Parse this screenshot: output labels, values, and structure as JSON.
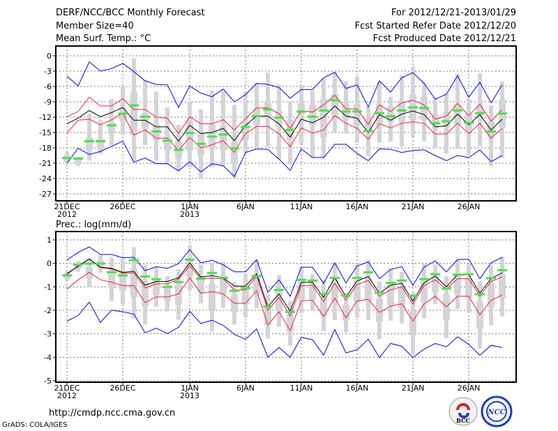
{
  "header": {
    "title": "DERF/NCC/BCC Monthly Forecast",
    "member_size": "Member Size=40",
    "variable": "Mean Surf. Temp.: °C",
    "period": "For 2012/12/21-2013/01/29",
    "start_date": "Fcst Started Refer Date 2012/12/20",
    "produced_date": "Fcst Produced Date 2012/12/21"
  },
  "footer": {
    "url": "http://cmdp.ncc.cma.gov.cn",
    "credit": "GrADS: COLA/IGES",
    "logos": [
      "BCC",
      "NCC"
    ]
  },
  "colors": {
    "whisker": "#d4d4d8",
    "obs": "#44e644",
    "mean": "#000000",
    "spread": "#ff1a3c",
    "extreme": "#0000ff"
  },
  "chart_data": [
    {
      "type": "line",
      "title": "Mean Surf. Temp.: °C",
      "ylabel": "°C",
      "ylim": [
        -27,
        0
      ],
      "yticks": [
        "0",
        "-3",
        "-6",
        "-9",
        "-12",
        "-15",
        "-18",
        "-21",
        "-24",
        "-27"
      ],
      "ytick_values": [
        0,
        -3,
        -6,
        -9,
        -12,
        -15,
        -18,
        -21,
        -24,
        -27
      ],
      "xticks": [
        {
          "day": 0,
          "label": "21DEC",
          "sub": "2012"
        },
        {
          "day": 5,
          "label": "26DEC"
        },
        {
          "day": 11,
          "label": "1JAN",
          "sub": "2013"
        },
        {
          "day": 16,
          "label": "6JAN"
        },
        {
          "day": 21,
          "label": "11JAN"
        },
        {
          "day": 26,
          "label": "16JAN"
        },
        {
          "day": 31,
          "label": "21JAN"
        },
        {
          "day": 36,
          "label": "26JAN"
        }
      ],
      "grid": true,
      "series": [
        {
          "name": "max",
          "color_key": "extreme",
          "values": [
            -4.0,
            -5.9,
            -1.2,
            -3.0,
            -2.5,
            -1.5,
            -3.1,
            -4.9,
            -5.6,
            -5.7,
            -10.1,
            -5.9,
            -7.3,
            -8.0,
            -6.5,
            -9.0,
            -7.6,
            -5.4,
            -5.6,
            -6.2,
            -8.3,
            -6.6,
            -6.6,
            -4.3,
            -3.2,
            -6.4,
            -5.7,
            -10.0,
            -4.9,
            -7.1,
            -4.3,
            -3.3,
            -5.4,
            -8.5,
            -7.5,
            -3.9,
            -8.1,
            -5.2,
            -9.2,
            -5.7
          ]
        },
        {
          "name": "mean+std",
          "color_key": "spread",
          "values": [
            -11.9,
            -10.9,
            -8.1,
            -9.8,
            -9.8,
            -8.4,
            -10.5,
            -10.5,
            -12.0,
            -12.2,
            -15.2,
            -11.9,
            -13.3,
            -13.3,
            -12.5,
            -14.5,
            -12.3,
            -10.2,
            -10.2,
            -11.3,
            -14.2,
            -10.7,
            -11.0,
            -9.6,
            -7.7,
            -10.4,
            -10.4,
            -13.4,
            -9.6,
            -10.9,
            -9.2,
            -8.7,
            -9.6,
            -12.4,
            -11.8,
            -9.3,
            -11.7,
            -9.5,
            -12.8,
            -10.5
          ]
        },
        {
          "name": "mean",
          "color_key": "mean",
          "values": [
            -13.3,
            -12.2,
            -10.7,
            -11.9,
            -11.1,
            -10.1,
            -12.6,
            -12.6,
            -13.9,
            -13.9,
            -16.7,
            -13.6,
            -15.2,
            -15.0,
            -14.2,
            -16.6,
            -13.6,
            -11.8,
            -11.8,
            -13.3,
            -15.9,
            -12.4,
            -13.1,
            -12.0,
            -9.8,
            -11.8,
            -12.2,
            -15.0,
            -11.5,
            -12.6,
            -11.4,
            -10.8,
            -11.5,
            -13.9,
            -13.7,
            -11.4,
            -13.5,
            -11.5,
            -14.5,
            -12.4
          ]
        },
        {
          "name": "mean-std",
          "color_key": "spread",
          "values": [
            -15.1,
            -12.6,
            -12.4,
            -13.5,
            -12.5,
            -11.2,
            -15.5,
            -14.5,
            -16.1,
            -16.1,
            -18.5,
            -16.0,
            -18.0,
            -17.4,
            -16.6,
            -18.9,
            -15.2,
            -13.8,
            -13.8,
            -15.2,
            -17.8,
            -14.1,
            -15.1,
            -14.5,
            -11.7,
            -13.2,
            -14.2,
            -16.3,
            -13.3,
            -14.1,
            -13.2,
            -12.9,
            -13.2,
            -15.3,
            -15.3,
            -13.2,
            -15.2,
            -13.2,
            -16.1,
            -14.2
          ]
        },
        {
          "name": "min",
          "color_key": "extreme",
          "values": [
            -21.0,
            -18.1,
            -19.3,
            -18.7,
            -17.7,
            -16.7,
            -20.8,
            -20.0,
            -21.1,
            -21.1,
            -22.5,
            -20.7,
            -22.7,
            -21.1,
            -21.5,
            -23.6,
            -18.9,
            -18.2,
            -18.3,
            -20.2,
            -22.4,
            -18.2,
            -19.9,
            -19.9,
            -17.3,
            -17.3,
            -19.1,
            -20.5,
            -18.2,
            -18.3,
            -18.9,
            -18.5,
            -18.4,
            -19.5,
            -20.5,
            -19.5,
            -19.9,
            -18.4,
            -20.7,
            -19.5
          ]
        }
      ],
      "observed": [
        -20.0,
        -20.1,
        -16.7,
        -16.7,
        -13.6,
        -11.3,
        -9.7,
        -11.9,
        -14.8,
        -16.6,
        -18.4,
        -15.1,
        -17.2,
        -15.8,
        -15.4,
        -18.1,
        -13.9,
        -11.8,
        -10.5,
        -12.1,
        -14.5,
        -10.9,
        -11.9,
        -10.7,
        -8.7,
        -10.9,
        -10.9,
        -14.7,
        -11.2,
        -11.8,
        -10.7,
        -10.1,
        -10.2,
        -13.2,
        -12.8,
        -10.7,
        -13.1,
        -11.2,
        -14.8,
        -11.3
      ],
      "whisker": [
        [
          -21.1,
          -18.8
        ],
        [
          -21.5,
          -19.8
        ],
        [
          -20.5,
          -11.3
        ],
        [
          -19.2,
          -12.6
        ],
        [
          -17.5,
          -8.5
        ],
        [
          -15.5,
          -5.9
        ],
        [
          -20.5,
          -0.5
        ],
        [
          -17.5,
          -4.8
        ],
        [
          -20.5,
          -7.0
        ],
        [
          -21.2,
          -10.1
        ],
        [
          -22.5,
          -13.5
        ],
        [
          -21.8,
          -8.9
        ],
        [
          -24.0,
          -10.5
        ],
        [
          -21.8,
          -6.8
        ],
        [
          -21.6,
          -6.8
        ],
        [
          -24.0,
          -9.6
        ],
        [
          -19.0,
          -7.0
        ],
        [
          -18.0,
          -5.3
        ],
        [
          -17.8,
          -3.3
        ],
        [
          -20.3,
          -5.6
        ],
        [
          -21.3,
          -9.0
        ],
        [
          -17.5,
          -5.7
        ],
        [
          -19.9,
          -6.8
        ],
        [
          -19.9,
          -4.5
        ],
        [
          -15.0,
          -3.2
        ],
        [
          -15.2,
          -5.0
        ],
        [
          -17.0,
          -4.0
        ],
        [
          -19.6,
          -10.0
        ],
        [
          -17.0,
          -5.0
        ],
        [
          -16.8,
          -8.0
        ],
        [
          -17.8,
          -3.8
        ],
        [
          -15.9,
          -2.1
        ],
        [
          -16.7,
          -5.2
        ],
        [
          -18.0,
          -8.2
        ],
        [
          -19.1,
          -7.4
        ],
        [
          -18.2,
          -3.5
        ],
        [
          -19.3,
          -8.4
        ],
        [
          -17.7,
          -3.4
        ],
        [
          -21.5,
          -9.7
        ],
        [
          -19.9,
          -5.0
        ]
      ],
      "box": [
        [
          -20.7,
          -19.5
        ],
        [
          -21.0,
          -20.0
        ],
        [
          -18.5,
          -16.0
        ],
        [
          -18.3,
          -16.3
        ],
        [
          -15.0,
          -13.0
        ],
        [
          -12.8,
          -10.2
        ],
        [
          -15.5,
          -7.0
        ],
        [
          -14.3,
          -11.2
        ],
        [
          -16.5,
          -13.5
        ],
        [
          -18.5,
          -15.8
        ],
        [
          -20.2,
          -16.6
        ],
        [
          -18.5,
          -12.8
        ],
        [
          -19.5,
          -15.2
        ],
        [
          -18.2,
          -13.5
        ],
        [
          -18.5,
          -13.8
        ],
        [
          -21.1,
          -16.8
        ],
        [
          -16.5,
          -13.0
        ],
        [
          -13.5,
          -10.3
        ],
        [
          -11.8,
          -9.0
        ],
        [
          -13.9,
          -10.8
        ],
        [
          -16.5,
          -12.7
        ],
        [
          -11.5,
          -9.3
        ],
        [
          -13.5,
          -9.6
        ],
        [
          -16.0,
          -8.5
        ],
        [
          -12.0,
          -7.5
        ],
        [
          -12.5,
          -9.5
        ],
        [
          -13.5,
          -9.5
        ],
        [
          -15.0,
          -12.2
        ],
        [
          -13.5,
          -9.5
        ],
        [
          -13.0,
          -10.0
        ],
        [
          -13.0,
          -9.0
        ],
        [
          -12.5,
          -7.5
        ],
        [
          -12.5,
          -8.0
        ],
        [
          -14.2,
          -11.5
        ],
        [
          -14.0,
          -11.0
        ],
        [
          -13.5,
          -9.5
        ],
        [
          -14.5,
          -11.3
        ],
        [
          -12.3,
          -9.5
        ],
        [
          -15.9,
          -13.0
        ],
        [
          -14.0,
          -8.5
        ]
      ]
    },
    {
      "type": "line",
      "title": "Prec.: log(mm/d)",
      "ylabel": "log(mm/d)",
      "ylim": [
        -5,
        1
      ],
      "yticks": [
        "1",
        "0",
        "-1",
        "-2",
        "-3",
        "-4",
        "-5"
      ],
      "ytick_values": [
        1,
        0,
        -1,
        -2,
        -3,
        -4,
        -5
      ],
      "xticks": [
        {
          "day": 0,
          "label": "21DEC",
          "sub": "2012"
        },
        {
          "day": 5,
          "label": "26DEC"
        },
        {
          "day": 11,
          "label": "1JAN",
          "sub": "2013"
        },
        {
          "day": 16,
          "label": "6JAN"
        },
        {
          "day": 21,
          "label": "11JAN"
        },
        {
          "day": 26,
          "label": "16JAN"
        },
        {
          "day": 31,
          "label": "21JAN"
        },
        {
          "day": 36,
          "label": "26JAN"
        }
      ],
      "grid": true,
      "series": [
        {
          "name": "max",
          "color_key": "extreme",
          "values": [
            0.14,
            0.47,
            0.7,
            0.38,
            0.38,
            0.24,
            0.26,
            -0.31,
            -0.14,
            -0.21,
            -0.01,
            0.58,
            0.02,
            0.13,
            -0.06,
            -0.36,
            -0.36,
            0.16,
            -1.23,
            -0.7,
            -1.4,
            -0.16,
            -0.16,
            -0.85,
            0.02,
            -0.83,
            -0.11,
            0.06,
            -0.65,
            -0.26,
            -0.14,
            -0.93,
            -0.16,
            0.11,
            -0.36,
            0.16,
            0.18,
            -0.65,
            0.02,
            0.26
          ]
        },
        {
          "name": "mean+std",
          "color_key": "spread",
          "values": [
            -0.41,
            -0.14,
            0.19,
            -0.18,
            -0.24,
            -0.41,
            -0.41,
            -1.05,
            -0.87,
            -0.87,
            -0.67,
            -0.11,
            -0.65,
            -0.63,
            -0.65,
            -1.13,
            -1.13,
            -0.54,
            -1.99,
            -1.45,
            -2.24,
            -0.95,
            -0.93,
            -1.63,
            -0.85,
            -1.57,
            -0.9,
            -0.73,
            -1.4,
            -1.13,
            -1.0,
            -1.73,
            -0.95,
            -0.7,
            -1.1,
            -0.65,
            -0.65,
            -1.4,
            -0.77,
            -0.58
          ]
        },
        {
          "name": "mean",
          "color_key": "mean",
          "values": [
            -0.46,
            -0.11,
            0.19,
            -0.16,
            -0.21,
            -0.38,
            -0.34,
            -0.93,
            -0.77,
            -0.77,
            -0.61,
            0.02,
            -0.58,
            -0.52,
            -0.61,
            -0.97,
            -0.97,
            -0.44,
            -1.85,
            -1.3,
            -2.04,
            -0.81,
            -0.81,
            -1.45,
            -0.61,
            -1.43,
            -0.75,
            -0.56,
            -1.27,
            -0.93,
            -0.85,
            -1.6,
            -0.83,
            -0.54,
            -1.0,
            -0.48,
            -0.48,
            -1.27,
            -0.65,
            -0.4
          ]
        },
        {
          "name": "mean-std",
          "color_key": "spread",
          "values": [
            -1.1,
            -0.7,
            -0.38,
            -0.7,
            -0.8,
            -0.95,
            -0.95,
            -1.67,
            -1.43,
            -1.43,
            -1.3,
            -0.61,
            -1.27,
            -1.2,
            -1.3,
            -1.7,
            -1.7,
            -1.17,
            -2.62,
            -2.06,
            -2.86,
            -1.6,
            -1.57,
            -2.26,
            -1.47,
            -2.32,
            -1.6,
            -1.53,
            -2.09,
            -1.82,
            -1.72,
            -2.46,
            -1.73,
            -1.4,
            -1.85,
            -1.4,
            -1.4,
            -2.19,
            -1.57,
            -1.35
          ]
        },
        {
          "name": "min",
          "color_key": "extreme",
          "values": [
            -2.46,
            -2.22,
            -1.65,
            -2.52,
            -1.99,
            -2.06,
            -2.16,
            -2.96,
            -2.76,
            -2.99,
            -2.72,
            -2.04,
            -2.56,
            -2.42,
            -2.64,
            -3.02,
            -3.23,
            -2.79,
            -4.0,
            -3.58,
            -4.0,
            -3.15,
            -3.25,
            -3.91,
            -2.82,
            -3.81,
            -3.68,
            -3.23,
            -4.01,
            -3.41,
            -3.53,
            -4.01,
            -3.65,
            -3.41,
            -3.55,
            -3.13,
            -3.45,
            -3.91,
            -3.49,
            -3.58
          ]
        }
      ],
      "observed": [
        -0.51,
        -0.06,
        -0.01,
        -0.01,
        -0.38,
        -0.51,
        0.14,
        -0.56,
        -0.67,
        -1.0,
        -0.8,
        0.16,
        -0.65,
        -0.41,
        -0.61,
        -1.17,
        -1.05,
        -0.54,
        -1.83,
        -1.13,
        -2.07,
        -0.7,
        -0.73,
        -1.3,
        -0.62,
        -1.37,
        -0.62,
        -0.38,
        -1.25,
        -0.83,
        -0.73,
        -1.38,
        -0.67,
        -0.46,
        -1.07,
        -0.48,
        -0.46,
        -1.32,
        -0.63,
        -0.29
      ],
      "whisker": [
        [
          -0.75,
          -0.35
        ],
        [
          -0.35,
          0.1
        ],
        [
          -1.0,
          0.2
        ],
        [
          -0.4,
          0.35
        ],
        [
          -1.6,
          0.25
        ],
        [
          -1.75,
          0.2
        ],
        [
          -2.35,
          0.7
        ],
        [
          -2.6,
          -0.05
        ],
        [
          -1.85,
          -0.15
        ],
        [
          -2.05,
          -0.55
        ],
        [
          -2.4,
          -0.25
        ],
        [
          -1.15,
          0.78
        ],
        [
          -1.7,
          -0.05
        ],
        [
          -2.9,
          0.0
        ],
        [
          -1.9,
          0.05
        ],
        [
          -2.6,
          -0.8
        ],
        [
          -2.3,
          -0.45
        ],
        [
          -1.9,
          0.15
        ],
        [
          -3.2,
          -1.3
        ],
        [
          -2.7,
          -0.5
        ],
        [
          -3.5,
          -1.6
        ],
        [
          -2.12,
          -0.16
        ],
        [
          -2.02,
          -0.46
        ],
        [
          -2.89,
          -0.7
        ],
        [
          -2.41,
          0.04
        ],
        [
          -2.94,
          -1.25
        ],
        [
          -2.32,
          -0.04
        ],
        [
          -2.41,
          0.16
        ],
        [
          -3.23,
          -0.77
        ],
        [
          -2.44,
          -0.21
        ],
        [
          -2.56,
          -0.36
        ],
        [
          -3.83,
          -1.25
        ],
        [
          -2.34,
          -0.01
        ],
        [
          -1.73,
          -0.06
        ],
        [
          -3.18,
          -0.54
        ],
        [
          -1.94,
          0.16
        ],
        [
          -2.1,
          -0.01
        ],
        [
          -3.63,
          -0.77
        ],
        [
          -2.64,
          -0.08
        ],
        [
          -2.26,
          0.29
        ]
      ]
    }
  ]
}
